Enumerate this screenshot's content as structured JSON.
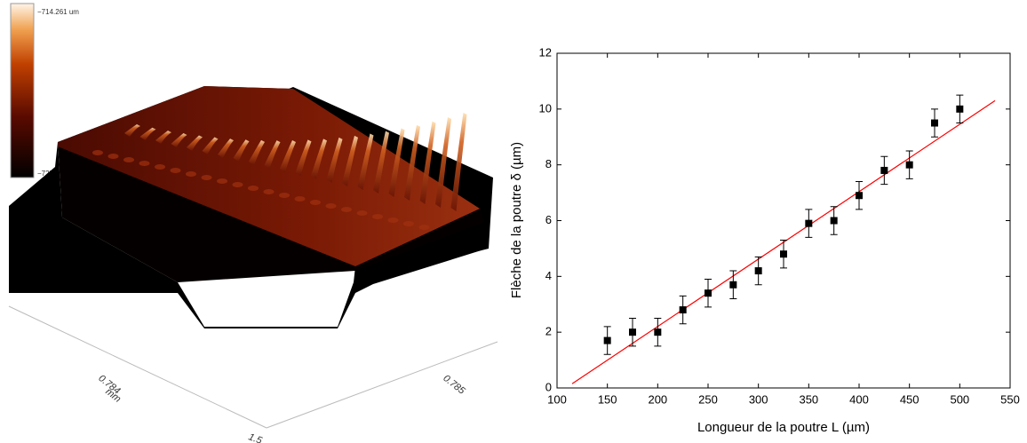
{
  "profile_image": {
    "colorbar_max": "−714.261 um",
    "colorbar_min": "−725",
    "axis_1_value": "0.784",
    "axis_1_unit": "mm",
    "axis_2_value": "0.785",
    "axis_3_value": "1.5"
  },
  "chart_data": {
    "type": "scatter",
    "x_label": "Longueur de la poutre L (µm)",
    "y_label": "Flèche de la poutre δ (µm)",
    "x": [
      150,
      175,
      200,
      225,
      250,
      275,
      300,
      325,
      350,
      375,
      400,
      425,
      450,
      475,
      500
    ],
    "values": [
      1.7,
      2.0,
      2.0,
      2.8,
      3.4,
      3.7,
      4.2,
      4.8,
      5.9,
      6.0,
      6.9,
      7.8,
      8.0,
      9.5,
      10.0
    ],
    "errors": [
      0.5,
      0.5,
      0.5,
      0.5,
      0.5,
      0.5,
      0.5,
      0.5,
      0.5,
      0.5,
      0.5,
      0.5,
      0.5,
      0.5,
      0.5
    ],
    "color": "#000000",
    "fit_line": {
      "x": [
        115,
        535
      ],
      "values": [
        0.15,
        10.3
      ],
      "color": "#ff0000"
    },
    "xlim": [
      100,
      550
    ],
    "xticks": [
      100,
      150,
      200,
      250,
      300,
      350,
      400,
      450,
      500,
      550
    ],
    "ylim": [
      0,
      12
    ],
    "yticks": [
      0,
      2,
      4,
      6,
      8,
      10,
      12
    ]
  }
}
